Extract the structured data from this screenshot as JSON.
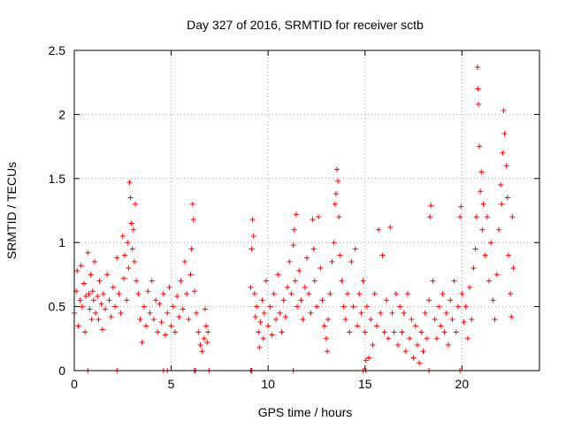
{
  "chart_data": {
    "type": "scatter",
    "title": "Day 327 of 2016, SRMTID for receiver sctb",
    "xlabel": "GPS time / hours",
    "ylabel": "SRMTID / TECUs",
    "xlim": [
      0,
      24
    ],
    "ylim": [
      0,
      2.5
    ],
    "x_ticks": [
      0,
      5,
      10,
      15,
      20
    ],
    "x_tick_labels": [
      "0",
      "5",
      "10",
      "15",
      "20"
    ],
    "y_ticks": [
      0,
      0.5,
      1,
      1.5,
      2,
      2.5
    ],
    "y_tick_labels": [
      "0",
      "0.5",
      "1",
      "1.5",
      "2",
      "2.5"
    ],
    "grid": true,
    "marker": "+",
    "marker_color": "#ff0000",
    "series": [
      {
        "name": "SRMTID",
        "points": [
          [
            0.0,
            0.45
          ],
          [
            0.1,
            0.62
          ],
          [
            0.15,
            0.78
          ],
          [
            0.2,
            0.35
          ],
          [
            0.3,
            0.55
          ],
          [
            0.35,
            0.82
          ],
          [
            0.4,
            0.5
          ],
          [
            0.5,
            0.68
          ],
          [
            0.55,
            0.3
          ],
          [
            0.6,
            0.58
          ],
          [
            0.7,
            0.92
          ],
          [
            0.75,
            0.6
          ],
          [
            0.8,
            0.48
          ],
          [
            0.85,
            0.75
          ],
          [
            0.9,
            0.4
          ],
          [
            0.95,
            0.62
          ],
          [
            1.0,
            0.55
          ],
          [
            1.05,
            0.85
          ],
          [
            1.1,
            0.45
          ],
          [
            1.2,
            0.58
          ],
          [
            1.25,
            0.4
          ],
          [
            1.3,
            0.7
          ],
          [
            1.4,
            0.52
          ],
          [
            1.45,
            0.32
          ],
          [
            1.5,
            0.6
          ],
          [
            1.6,
            0.48
          ],
          [
            1.7,
            0.75
          ],
          [
            1.8,
            0.55
          ],
          [
            1.9,
            0.42
          ],
          [
            2.0,
            0.65
          ],
          [
            2.1,
            0.5
          ],
          [
            2.2,
            0.88
          ],
          [
            2.3,
            0.6
          ],
          [
            2.4,
            0.45
          ],
          [
            2.5,
            1.05
          ],
          [
            2.55,
            0.72
          ],
          [
            2.6,
            0.9
          ],
          [
            2.7,
            0.55
          ],
          [
            2.75,
            1.0
          ],
          [
            2.8,
            0.8
          ],
          [
            2.85,
            1.47
          ],
          [
            2.9,
            1.35
          ],
          [
            2.95,
            1.15
          ],
          [
            3.0,
            0.95
          ],
          [
            3.05,
            1.1
          ],
          [
            3.1,
            0.85
          ],
          [
            3.15,
            1.3
          ],
          [
            3.2,
            0.7
          ],
          [
            3.3,
            0.6
          ],
          [
            3.4,
            0.4
          ],
          [
            3.5,
            0.22
          ],
          [
            3.6,
            0.5
          ],
          [
            3.7,
            0.35
          ],
          [
            3.8,
            0.62
          ],
          [
            3.9,
            0.45
          ],
          [
            4.0,
            0.7
          ],
          [
            4.1,
            0.4
          ],
          [
            4.2,
            0.55
          ],
          [
            4.3,
            0.3
          ],
          [
            4.4,
            0.52
          ],
          [
            4.5,
            0.38
          ],
          [
            4.6,
            0.6
          ],
          [
            4.7,
            0.28
          ],
          [
            4.8,
            0.45
          ],
          [
            4.9,
            0.65
          ],
          [
            5.0,
            0.35
          ],
          [
            5.1,
            0.5
          ],
          [
            5.2,
            0.3
          ],
          [
            5.3,
            0.58
          ],
          [
            5.4,
            0.42
          ],
          [
            5.5,
            0.7
          ],
          [
            5.6,
            0.48
          ],
          [
            5.7,
            0.85
          ],
          [
            5.8,
            0.6
          ],
          [
            5.9,
            0.4
          ],
          [
            6.0,
            0.75
          ],
          [
            6.05,
            0.95
          ],
          [
            6.1,
            1.3
          ],
          [
            6.15,
            1.18
          ],
          [
            6.2,
            0.62
          ],
          [
            6.3,
            0.45
          ],
          [
            6.4,
            0.3
          ],
          [
            6.5,
            0.2
          ],
          [
            6.6,
            0.15
          ],
          [
            6.7,
            0.25
          ],
          [
            6.75,
            0.48
          ],
          [
            6.8,
            0.35
          ],
          [
            6.85,
            0.22
          ],
          [
            6.9,
            0.3
          ],
          [
            9.1,
            0.65
          ],
          [
            9.15,
            0.95
          ],
          [
            9.2,
            1.18
          ],
          [
            9.25,
            1.05
          ],
          [
            9.3,
            0.6
          ],
          [
            9.35,
            0.42
          ],
          [
            9.4,
            0.5
          ],
          [
            9.5,
            0.3
          ],
          [
            9.55,
            0.18
          ],
          [
            9.6,
            0.38
          ],
          [
            9.7,
            0.55
          ],
          [
            9.75,
            0.25
          ],
          [
            9.8,
            0.45
          ],
          [
            9.9,
            0.7
          ],
          [
            10.0,
            0.35
          ],
          [
            10.1,
            0.5
          ],
          [
            10.2,
            0.28
          ],
          [
            10.3,
            0.6
          ],
          [
            10.4,
            0.4
          ],
          [
            10.5,
            0.75
          ],
          [
            10.6,
            0.45
          ],
          [
            10.7,
            0.3
          ],
          [
            10.8,
            0.55
          ],
          [
            10.9,
            0.42
          ],
          [
            11.0,
            0.65
          ],
          [
            11.1,
            0.85
          ],
          [
            11.2,
            0.6
          ],
          [
            11.3,
            0.98
          ],
          [
            11.35,
            1.1
          ],
          [
            11.4,
            0.7
          ],
          [
            11.45,
            1.22
          ],
          [
            11.5,
            0.5
          ],
          [
            11.6,
            0.78
          ],
          [
            11.7,
            0.55
          ],
          [
            11.8,
            0.4
          ],
          [
            11.9,
            0.65
          ],
          [
            12.0,
            0.88
          ],
          [
            12.1,
            0.6
          ],
          [
            12.2,
            0.45
          ],
          [
            12.3,
            1.18
          ],
          [
            12.35,
            0.95
          ],
          [
            12.4,
            0.7
          ],
          [
            12.5,
            0.5
          ],
          [
            12.6,
            1.2
          ],
          [
            12.7,
            0.8
          ],
          [
            12.8,
            0.55
          ],
          [
            12.9,
            0.35
          ],
          [
            13.0,
            0.25
          ],
          [
            13.05,
            0.15
          ],
          [
            13.1,
            0.4
          ],
          [
            13.2,
            0.6
          ],
          [
            13.3,
            0.85
          ],
          [
            13.4,
            1.0
          ],
          [
            13.45,
            1.3
          ],
          [
            13.5,
            1.38
          ],
          [
            13.55,
            1.57
          ],
          [
            13.6,
            1.48
          ],
          [
            13.65,
            1.2
          ],
          [
            13.7,
            0.9
          ],
          [
            13.8,
            0.7
          ],
          [
            13.9,
            0.5
          ],
          [
            14.0,
            0.4
          ],
          [
            14.1,
            0.6
          ],
          [
            14.2,
            0.3
          ],
          [
            14.3,
            0.85
          ],
          [
            14.4,
            0.5
          ],
          [
            14.5,
            0.95
          ],
          [
            14.6,
            0.35
          ],
          [
            14.7,
            0.6
          ],
          [
            14.8,
            0.45
          ],
          [
            14.9,
            0.7
          ],
          [
            15.0,
            0.3
          ],
          [
            15.05,
            0.08
          ],
          [
            15.1,
            0.5
          ],
          [
            15.2,
            0.1
          ],
          [
            15.3,
            0.4
          ],
          [
            15.4,
            0.2
          ],
          [
            15.5,
            0.6
          ],
          [
            15.6,
            0.35
          ],
          [
            15.7,
            1.1
          ],
          [
            15.8,
            0.45
          ],
          [
            15.9,
            0.9
          ],
          [
            16.0,
            0.3
          ],
          [
            16.1,
            0.55
          ],
          [
            16.2,
            0.25
          ],
          [
            16.3,
            1.12
          ],
          [
            16.4,
            0.45
          ],
          [
            16.5,
            0.3
          ],
          [
            16.6,
            0.6
          ],
          [
            16.7,
            0.2
          ],
          [
            16.8,
            0.5
          ],
          [
            16.9,
            0.3
          ],
          [
            17.0,
            0.45
          ],
          [
            17.1,
            0.15
          ],
          [
            17.2,
            0.6
          ],
          [
            17.3,
            0.25
          ],
          [
            17.4,
            0.4
          ],
          [
            17.5,
            0.1
          ],
          [
            17.6,
            0.35
          ],
          [
            17.7,
            0.2
          ],
          [
            17.8,
            0.06
          ],
          [
            17.9,
            0.3
          ],
          [
            18.0,
            0.15
          ],
          [
            18.1,
            0.45
          ],
          [
            18.2,
            0.25
          ],
          [
            18.3,
            0.55
          ],
          [
            18.35,
            1.2
          ],
          [
            18.4,
            1.29
          ],
          [
            18.5,
            0.7
          ],
          [
            18.6,
            0.4
          ],
          [
            18.7,
            0.25
          ],
          [
            18.8,
            0.5
          ],
          [
            18.9,
            0.35
          ],
          [
            19.0,
            0.6
          ],
          [
            19.1,
            0.3
          ],
          [
            19.2,
            0.45
          ],
          [
            19.3,
            0.2
          ],
          [
            19.4,
            0.55
          ],
          [
            19.5,
            0.4
          ],
          [
            19.6,
            0.7
          ],
          [
            19.7,
            0.3
          ],
          [
            19.8,
            0.5
          ],
          [
            19.9,
            1.2
          ],
          [
            19.95,
            1.28
          ],
          [
            20.0,
            0.6
          ],
          [
            20.1,
            0.38
          ],
          [
            20.2,
            0.5
          ],
          [
            20.3,
            0.25
          ],
          [
            20.4,
            0.65
          ],
          [
            20.5,
            0.4
          ],
          [
            20.6,
            0.8
          ],
          [
            20.7,
            0.95
          ],
          [
            20.75,
            1.2
          ],
          [
            20.8,
            2.37
          ],
          [
            20.82,
            2.2
          ],
          [
            20.85,
            2.08
          ],
          [
            20.9,
            1.75
          ],
          [
            20.95,
            1.4
          ],
          [
            21.0,
            1.55
          ],
          [
            21.05,
            1.1
          ],
          [
            21.1,
            1.3
          ],
          [
            21.2,
            0.9
          ],
          [
            21.3,
            1.2
          ],
          [
            21.4,
            0.7
          ],
          [
            21.5,
            1.0
          ],
          [
            21.6,
            0.55
          ],
          [
            21.7,
            0.4
          ],
          [
            21.8,
            0.75
          ],
          [
            21.9,
            1.1
          ],
          [
            22.0,
            1.45
          ],
          [
            22.05,
            1.3
          ],
          [
            22.1,
            1.7
          ],
          [
            22.15,
            2.03
          ],
          [
            22.2,
            1.85
          ],
          [
            22.3,
            1.6
          ],
          [
            22.35,
            1.35
          ],
          [
            22.4,
            0.9
          ],
          [
            22.5,
            0.6
          ],
          [
            22.55,
            0.42
          ],
          [
            22.6,
            1.2
          ],
          [
            22.65,
            0.8
          ]
        ]
      }
    ],
    "zero_points_x": [
      0.7,
      2.2,
      4.6,
      4.8,
      6.2,
      6.25,
      6.95,
      9.1,
      9.15,
      11.3,
      14.9,
      15.05,
      18.3,
      19.9
    ]
  }
}
